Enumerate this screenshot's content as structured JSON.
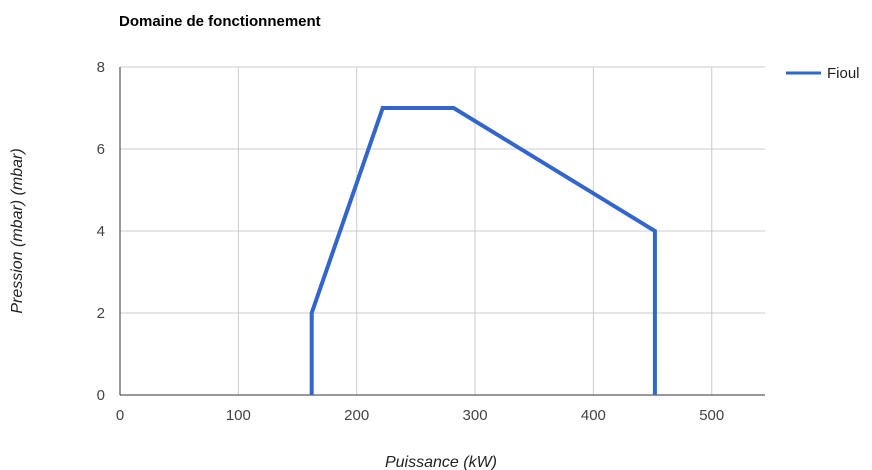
{
  "chart_data": {
    "type": "line",
    "title": "Domaine de fonctionnement",
    "xlabel": "Puissance (kW)",
    "ylabel": "Pression (mbar) (mbar)",
    "xlim": [
      0,
      545
    ],
    "ylim": [
      0,
      8
    ],
    "x_ticks": [
      "0",
      "100",
      "200",
      "300",
      "400",
      "500"
    ],
    "y_ticks": [
      "0",
      "2",
      "4",
      "6",
      "8"
    ],
    "grid": true,
    "legend_position": "right",
    "series": [
      {
        "name": "Fioul",
        "color": "#3366cc",
        "points": [
          [
            162,
            0
          ],
          [
            162,
            2
          ],
          [
            222,
            7
          ],
          [
            282,
            7
          ],
          [
            452,
            4
          ],
          [
            452,
            0
          ]
        ]
      }
    ]
  }
}
